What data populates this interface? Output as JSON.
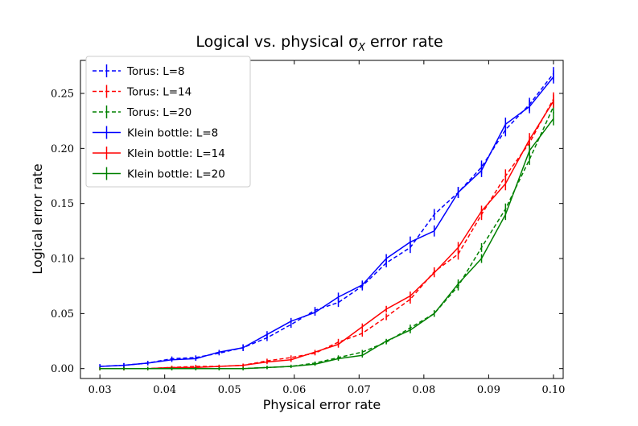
{
  "chart_data": {
    "type": "line",
    "title": "Logical vs. physical σ",
    "title_subscript": "X",
    "title_suffix": "error rate",
    "xlabel": "Physical error rate",
    "ylabel": "Logical error rate",
    "xlim": [
      0.027,
      0.1015
    ],
    "ylim": [
      -0.009,
      0.28
    ],
    "xticks": [
      0.03,
      0.04,
      0.05,
      0.06,
      0.07,
      0.08,
      0.09,
      0.1
    ],
    "xtick_labels": [
      "0.03",
      "0.04",
      "0.05",
      "0.06",
      "0.07",
      "0.08",
      "0.09",
      "0.10"
    ],
    "yticks": [
      0.0,
      0.05,
      0.1,
      0.15,
      0.2,
      0.25
    ],
    "ytick_labels": [
      "0.00",
      "0.05",
      "0.10",
      "0.15",
      "0.20",
      "0.25"
    ],
    "grid": false,
    "legend_position": "top-left",
    "x": [
      0.03,
      0.0337,
      0.0374,
      0.0411,
      0.0448,
      0.0484,
      0.0521,
      0.0558,
      0.0595,
      0.0632,
      0.0668,
      0.0705,
      0.0742,
      0.0779,
      0.0816,
      0.0853,
      0.0889,
      0.0926,
      0.0963,
      0.1
    ],
    "series": [
      {
        "name": "Torus: L=8",
        "color": "#0000ff",
        "dashed": true,
        "values": [
          0.002,
          0.003,
          0.005,
          0.009,
          0.01,
          0.014,
          0.019,
          0.028,
          0.04,
          0.053,
          0.06,
          0.075,
          0.096,
          0.11,
          0.14,
          0.16,
          0.183,
          0.217,
          0.24,
          0.268
        ],
        "errors": [
          0.002,
          0.002,
          0.002,
          0.002,
          0.002,
          0.002,
          0.003,
          0.003,
          0.003,
          0.003,
          0.004,
          0.004,
          0.004,
          0.005,
          0.005,
          0.005,
          0.006,
          0.006,
          0.006,
          0.006
        ]
      },
      {
        "name": "Torus: L=14",
        "color": "#ff0000",
        "dashed": true,
        "values": [
          0.0,
          0.0,
          0.0,
          0.001,
          0.002,
          0.002,
          0.003,
          0.007,
          0.01,
          0.014,
          0.024,
          0.032,
          0.047,
          0.063,
          0.088,
          0.104,
          0.14,
          0.175,
          0.205,
          0.245
        ],
        "errors": [
          0.001,
          0.001,
          0.001,
          0.001,
          0.001,
          0.001,
          0.001,
          0.002,
          0.002,
          0.002,
          0.003,
          0.003,
          0.003,
          0.004,
          0.004,
          0.005,
          0.005,
          0.006,
          0.006,
          0.006
        ]
      },
      {
        "name": "Torus: L=20",
        "color": "#008000",
        "dashed": true,
        "values": [
          0.0,
          0.0,
          0.0,
          0.0,
          0.0,
          0.0,
          0.0,
          0.001,
          0.002,
          0.005,
          0.01,
          0.015,
          0.024,
          0.037,
          0.05,
          0.075,
          0.11,
          0.145,
          0.19,
          0.238
        ],
        "errors": [
          0.0005,
          0.0005,
          0.0005,
          0.0005,
          0.0005,
          0.0005,
          0.0005,
          0.001,
          0.001,
          0.001,
          0.002,
          0.002,
          0.002,
          0.003,
          0.003,
          0.004,
          0.004,
          0.005,
          0.005,
          0.006
        ]
      },
      {
        "name": "Klein bottle: L=8",
        "color": "#0000ff",
        "dashed": false,
        "values": [
          0.002,
          0.003,
          0.005,
          0.008,
          0.009,
          0.015,
          0.019,
          0.031,
          0.043,
          0.051,
          0.065,
          0.076,
          0.1,
          0.115,
          0.125,
          0.16,
          0.18,
          0.222,
          0.238,
          0.265
        ],
        "errors": [
          0.002,
          0.002,
          0.002,
          0.002,
          0.002,
          0.002,
          0.003,
          0.003,
          0.003,
          0.003,
          0.004,
          0.004,
          0.004,
          0.005,
          0.005,
          0.005,
          0.006,
          0.006,
          0.006,
          0.006
        ]
      },
      {
        "name": "Klein bottle: L=14",
        "color": "#ff0000",
        "dashed": false,
        "values": [
          0.0,
          0.0,
          0.0,
          0.001,
          0.001,
          0.002,
          0.003,
          0.006,
          0.008,
          0.015,
          0.022,
          0.038,
          0.054,
          0.066,
          0.087,
          0.11,
          0.143,
          0.168,
          0.208,
          0.243
        ],
        "errors": [
          0.001,
          0.001,
          0.001,
          0.001,
          0.001,
          0.001,
          0.001,
          0.002,
          0.002,
          0.002,
          0.003,
          0.003,
          0.003,
          0.004,
          0.004,
          0.005,
          0.005,
          0.006,
          0.006,
          0.006
        ]
      },
      {
        "name": "Klein bottle: L=20",
        "color": "#008000",
        "dashed": false,
        "values": [
          0.0,
          0.0,
          0.0,
          0.0,
          0.0,
          0.0,
          0.0,
          0.001,
          0.002,
          0.004,
          0.009,
          0.012,
          0.025,
          0.035,
          0.05,
          0.077,
          0.1,
          0.14,
          0.198,
          0.227
        ],
        "errors": [
          0.0005,
          0.0005,
          0.0005,
          0.0005,
          0.0005,
          0.0005,
          0.0005,
          0.001,
          0.001,
          0.001,
          0.002,
          0.002,
          0.002,
          0.003,
          0.003,
          0.004,
          0.004,
          0.005,
          0.005,
          0.006
        ]
      }
    ]
  }
}
